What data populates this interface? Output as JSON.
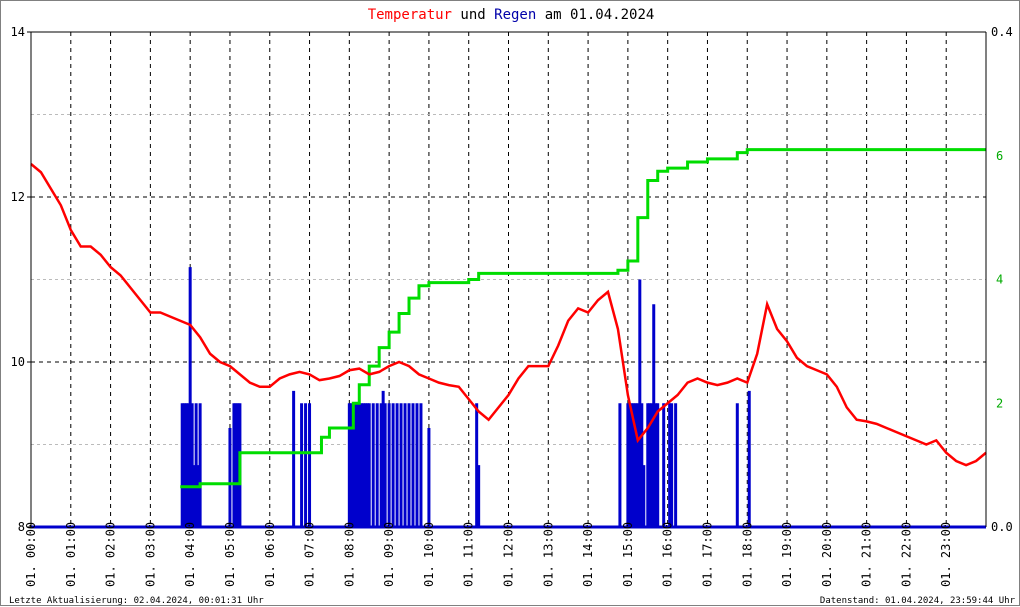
{
  "title": {
    "part1": "Temperatur",
    "part2": " und ",
    "part3": "Regen",
    "part4": " am 01.04.2024"
  },
  "colors": {
    "temperature": "#ff0000",
    "rain": "#0000cc",
    "rain_sum": "#00dd00",
    "right_axis": "#00aa00",
    "grid": "#000000"
  },
  "footer": {
    "left": "Letzte Aktualisierung: 02.04.2024, 00:01:31 Uhr",
    "right": "Datenstand: 01.04.2024, 23:59:44 Uhr"
  },
  "chart_data": {
    "type": "line",
    "x_unit": "hour of day",
    "xlim": [
      0,
      24
    ],
    "x_ticks": [
      0,
      1,
      2,
      3,
      4,
      5,
      6,
      7,
      8,
      9,
      10,
      11,
      12,
      13,
      14,
      15,
      16,
      17,
      18,
      19,
      20,
      21,
      22,
      23
    ],
    "x_tick_labels": [
      "01. 00:00",
      "01. 01:00",
      "01. 02:00",
      "01. 03:00",
      "01. 04:00",
      "01. 05:00",
      "01. 06:00",
      "01. 07:00",
      "01. 08:00",
      "01. 09:00",
      "01. 10:00",
      "01. 11:00",
      "01. 12:00",
      "01. 13:00",
      "01. 14:00",
      "01. 15:00",
      "01. 16:00",
      "01. 17:00",
      "01. 18:00",
      "01. 19:00",
      "01. 20:00",
      "01. 21:00",
      "01. 22:00",
      "01. 23:00"
    ],
    "y_left": {
      "ylim": [
        8,
        14
      ],
      "ticks": [
        8,
        10,
        12,
        14
      ],
      "tick_labels": [
        "8",
        "10",
        "12",
        "14"
      ]
    },
    "y_right": {
      "ylim": [
        0,
        0.4
      ],
      "ticks": [
        0,
        0.4
      ],
      "tick_labels": [
        "0.0",
        "0.4"
      ]
    },
    "y_right_sum": {
      "ylim": [
        0,
        8
      ],
      "ticks": [
        2,
        4,
        6
      ],
      "tick_labels": [
        "2",
        "4",
        "6"
      ]
    },
    "series": [
      {
        "kind": "line",
        "axis": "left",
        "color": "#ff0000",
        "x": [
          0,
          0.25,
          0.5,
          0.75,
          1,
          1.25,
          1.5,
          1.75,
          2,
          2.25,
          2.5,
          2.75,
          3,
          3.25,
          3.5,
          3.75,
          4,
          4.25,
          4.5,
          4.75,
          5,
          5.25,
          5.5,
          5.75,
          6,
          6.25,
          6.5,
          6.75,
          7,
          7.25,
          7.5,
          7.75,
          8,
          8.25,
          8.5,
          8.75,
          9,
          9.25,
          9.5,
          9.75,
          10,
          10.25,
          10.5,
          10.75,
          11,
          11.25,
          11.5,
          11.75,
          12,
          12.25,
          12.5,
          12.75,
          13,
          13.25,
          13.5,
          13.75,
          14,
          14.25,
          14.5,
          14.75,
          15,
          15.25,
          15.5,
          15.75,
          16,
          16.25,
          16.5,
          16.75,
          17,
          17.25,
          17.5,
          17.75,
          18,
          18.25,
          18.5,
          18.75,
          19,
          19.25,
          19.5,
          19.75,
          20,
          20.25,
          20.5,
          20.75,
          21,
          21.25,
          21.5,
          21.75,
          22,
          22.25,
          22.5,
          22.75,
          23,
          23.25,
          23.5,
          23.75,
          24
        ],
        "y": [
          12.4,
          12.3,
          12.1,
          11.9,
          11.6,
          11.4,
          11.4,
          11.3,
          11.15,
          11.05,
          10.9,
          10.75,
          10.6,
          10.6,
          10.55,
          10.5,
          10.45,
          10.3,
          10.1,
          10.0,
          9.95,
          9.85,
          9.75,
          9.7,
          9.7,
          9.8,
          9.85,
          9.88,
          9.85,
          9.78,
          9.8,
          9.83,
          9.9,
          9.92,
          9.85,
          9.88,
          9.95,
          10.0,
          9.95,
          9.85,
          9.8,
          9.75,
          9.72,
          9.7,
          9.55,
          9.4,
          9.3,
          9.45,
          9.6,
          9.8,
          9.95,
          9.95,
          9.95,
          10.2,
          10.5,
          10.65,
          10.6,
          10.75,
          10.85,
          10.4,
          9.6,
          9.05,
          9.2,
          9.4,
          9.5,
          9.6,
          9.75,
          9.8,
          9.75,
          9.72,
          9.75,
          9.8,
          9.75,
          10.1,
          10.7,
          10.4,
          10.25,
          10.05,
          9.95,
          9.9,
          9.85,
          9.7,
          9.45,
          9.3,
          9.28,
          9.25,
          9.2,
          9.15,
          9.1,
          9.05,
          9.0,
          9.05,
          8.9,
          8.8,
          8.75,
          8.8,
          8.9
        ]
      },
      {
        "kind": "step",
        "axis": "right_sum",
        "color": "#00dd00",
        "x": [
          3.75,
          4.25,
          5.25,
          6.5,
          7.0,
          7.3,
          7.5,
          8.0,
          8.1,
          8.25,
          8.5,
          8.75,
          9.0,
          9.25,
          9.5,
          9.75,
          10.0,
          11.0,
          11.25,
          12.0,
          13.0,
          14.0,
          14.75,
          15.0,
          15.25,
          15.5,
          15.75,
          16.0,
          16.5,
          17.0,
          17.5,
          17.75,
          18.0,
          18.5,
          20.0,
          22.0,
          24.0
        ],
        "y": [
          0.65,
          0.7,
          1.2,
          1.2,
          1.2,
          1.45,
          1.6,
          1.6,
          2.0,
          2.3,
          2.6,
          2.9,
          3.15,
          3.45,
          3.7,
          3.9,
          3.95,
          4.0,
          4.1,
          4.1,
          4.1,
          4.1,
          4.15,
          4.3,
          5.0,
          5.6,
          5.75,
          5.8,
          5.9,
          5.95,
          5.95,
          6.05,
          6.1,
          6.1,
          6.1,
          6.1,
          6.1
        ]
      },
      {
        "kind": "bars",
        "axis": "right",
        "color": "#0000cc",
        "x": [
          3.8,
          3.85,
          3.9,
          3.95,
          4.0,
          4.05,
          4.1,
          4.15,
          4.2,
          4.25,
          5.0,
          5.1,
          5.15,
          5.2,
          5.25,
          6.6,
          6.8,
          6.9,
          7.0,
          8.0,
          8.05,
          8.1,
          8.15,
          8.2,
          8.25,
          8.3,
          8.35,
          8.4,
          8.45,
          8.5,
          8.6,
          8.7,
          8.8,
          8.85,
          8.9,
          9.0,
          9.1,
          9.2,
          9.3,
          9.4,
          9.5,
          9.6,
          9.7,
          9.8,
          10.0,
          11.2,
          11.25,
          14.8,
          15.0,
          15.05,
          15.1,
          15.15,
          15.2,
          15.25,
          15.3,
          15.35,
          15.4,
          15.5,
          15.55,
          15.6,
          15.65,
          15.7,
          15.75,
          15.9,
          16.05,
          16.1,
          16.2,
          17.75,
          18.05
        ],
        "y": [
          0.1,
          0.1,
          0.1,
          0.1,
          0.21,
          0.1,
          0.05,
          0.1,
          0.05,
          0.1,
          0.08,
          0.1,
          0.1,
          0.1,
          0.1,
          0.11,
          0.1,
          0.1,
          0.1,
          0.1,
          0.1,
          0.1,
          0.1,
          0.1,
          0.1,
          0.1,
          0.1,
          0.1,
          0.1,
          0.1,
          0.1,
          0.1,
          0.1,
          0.11,
          0.1,
          0.1,
          0.1,
          0.1,
          0.1,
          0.1,
          0.1,
          0.1,
          0.1,
          0.1,
          0.08,
          0.1,
          0.05,
          0.1,
          0.1,
          0.1,
          0.1,
          0.1,
          0.1,
          0.1,
          0.2,
          0.1,
          0.05,
          0.1,
          0.1,
          0.1,
          0.18,
          0.1,
          0.1,
          0.1,
          0.1,
          0.1,
          0.1,
          0.1,
          0.11
        ]
      }
    ],
    "grid": true,
    "legend": "none"
  }
}
